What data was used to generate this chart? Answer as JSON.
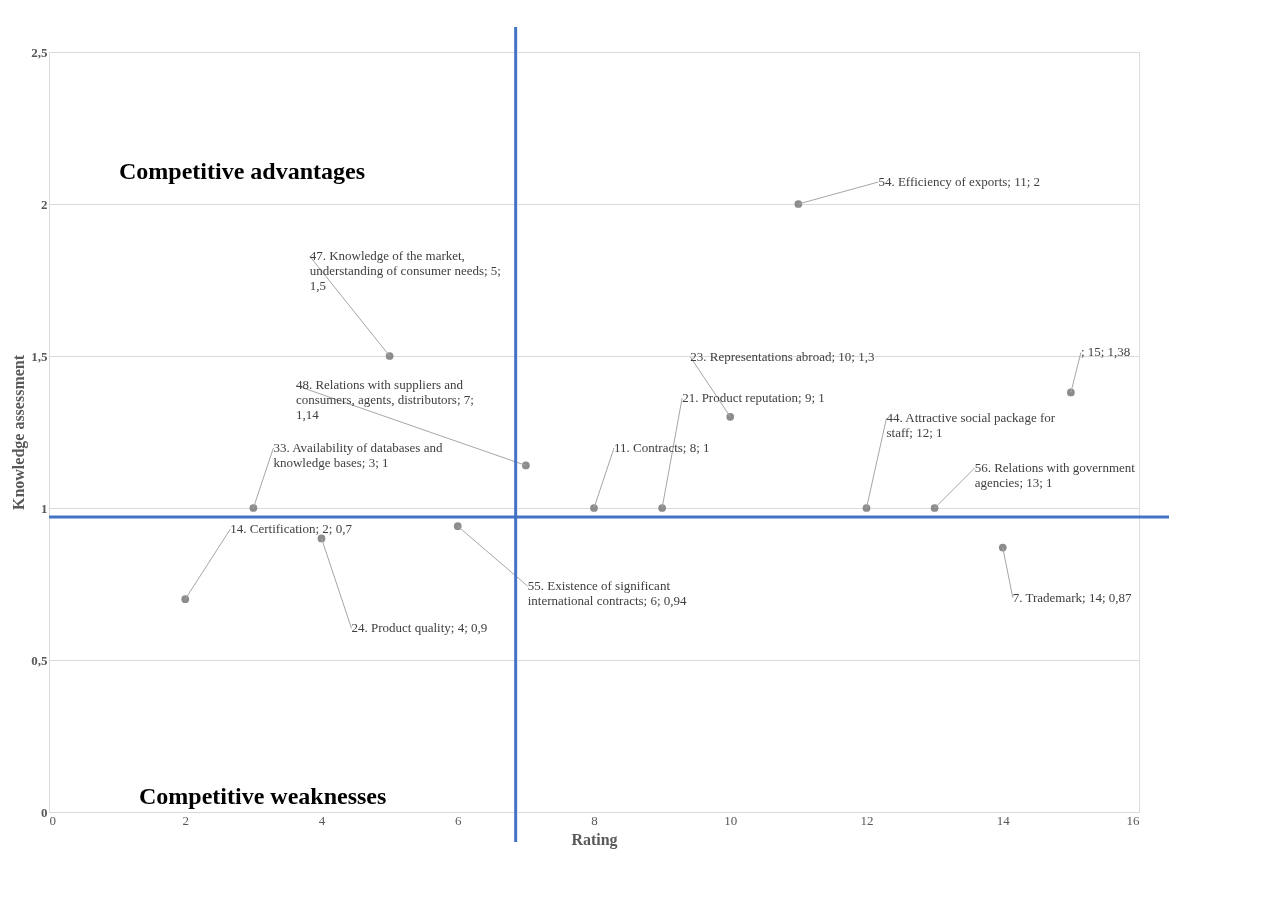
{
  "chart_data": {
    "type": "scatter",
    "xlabel": "Rating",
    "ylabel": "Knowledge assessment",
    "x": [
      2,
      3,
      4,
      5,
      6,
      7,
      8,
      9,
      10,
      11,
      12,
      13,
      14,
      15
    ],
    "values": [
      0.7,
      1,
      0.9,
      1.5,
      0.94,
      1.14,
      1,
      1,
      1.3,
      2,
      1,
      1,
      0.87,
      1.38
    ],
    "value_labels": [
      "14. Certification; 2; 0,7",
      "33. Availability of databases and knowledge bases; 3; 1",
      "24. Product quality; 4; 0,9",
      "47. Knowledge of the market, understanding of consumer needs; 5; 1,5",
      "55. Existence of significant international contracts; 6; 0,94",
      "48. Relations with suppliers and consumers, agents, distributors; 7; 1,14",
      "11. Contracts; 8; 1",
      "21. Product reputation; 9; 1",
      "23. Representations abroad; 10; 1,3",
      "54. Efficiency of exports; 11; 2",
      "44. Attractive social package for staff; 12; 1",
      "56. Relations with government agencies; 13; 1",
      "7. Trademark; 14; 0,87",
      "; 15; 1,38"
    ],
    "marker": "circle",
    "grid": "y",
    "xlim": [
      0,
      16
    ],
    "xticks": [
      0,
      2,
      4,
      6,
      8,
      10,
      12,
      14,
      16
    ],
    "ylim": [
      0,
      2.5
    ],
    "yticks": [
      0,
      {
        "value": 0.5,
        "label": "0,5"
      },
      1,
      {
        "value": 1.5,
        "label": "1,5"
      },
      2,
      {
        "value": 2.5,
        "label": "2,5"
      }
    ],
    "ref_lines": [
      {
        "axis": "x",
        "value": 6.85,
        "color": "#4472c4"
      },
      {
        "axis": "y",
        "value": 0.97,
        "color": "#4472c4"
      }
    ],
    "annotations": [
      "Competitive advantages",
      "Competitive weaknesses"
    ]
  }
}
